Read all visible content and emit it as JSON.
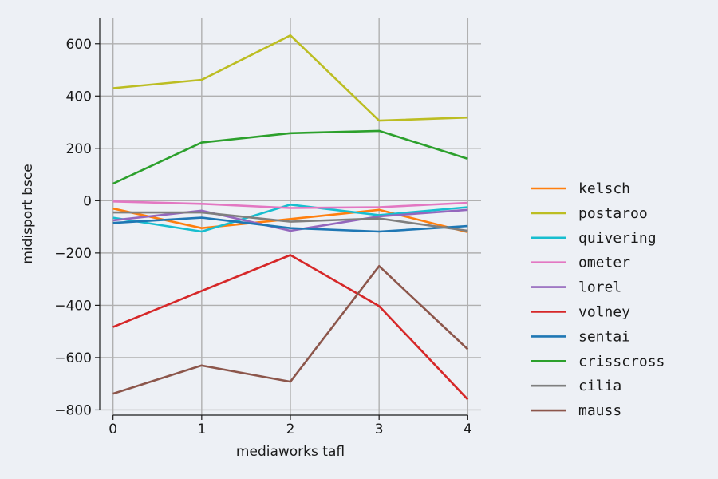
{
  "chart_data": {
    "type": "line",
    "xlabel": "mediaworks tafl",
    "ylabel": "midisport bsce",
    "x": [
      0,
      1,
      2,
      3,
      4
    ],
    "xlim": [
      -0.15,
      4.15
    ],
    "ylim": [
      -820,
      700
    ],
    "xticks": [
      0,
      1,
      2,
      3,
      4
    ],
    "yticks": [
      -800,
      -600,
      -400,
      -200,
      0,
      200,
      400,
      600
    ],
    "ytick_labels": [
      "−800",
      "−600",
      "−400",
      "−200",
      "0",
      "200",
      "400",
      "600"
    ],
    "grid": true,
    "legend_position": "right",
    "series": [
      {
        "name": "kelsch",
        "color": "#ff7f0e",
        "values": [
          -30,
          -105,
          -70,
          -35,
          -120
        ]
      },
      {
        "name": "postaroo",
        "color": "#bcbd22",
        "values": [
          430,
          462,
          632,
          306,
          318
        ]
      },
      {
        "name": "quivering",
        "color": "#17becf",
        "values": [
          -65,
          -118,
          -15,
          -55,
          -25
        ]
      },
      {
        "name": "ometer",
        "color": "#e377c2",
        "values": [
          -3,
          -12,
          -28,
          -25,
          -8
        ]
      },
      {
        "name": "lorel",
        "color": "#9467bd",
        "values": [
          -75,
          -38,
          -115,
          -60,
          -35
        ]
      },
      {
        "name": "volney",
        "color": "#d62728",
        "values": [
          -483,
          -345,
          -208,
          -403,
          -760
        ]
      },
      {
        "name": "sentai",
        "color": "#1f77b4",
        "values": [
          -85,
          -65,
          -105,
          -118,
          -97
        ]
      },
      {
        "name": "crisscross",
        "color": "#2ca02c",
        "values": [
          65,
          222,
          258,
          267,
          160
        ]
      },
      {
        "name": "cilia",
        "color": "#7f7f7f",
        "values": [
          -45,
          -45,
          -80,
          -68,
          -115
        ]
      },
      {
        "name": "mauss",
        "color": "#8c564b",
        "values": [
          -738,
          -630,
          -692,
          -250,
          -568
        ]
      }
    ]
  }
}
